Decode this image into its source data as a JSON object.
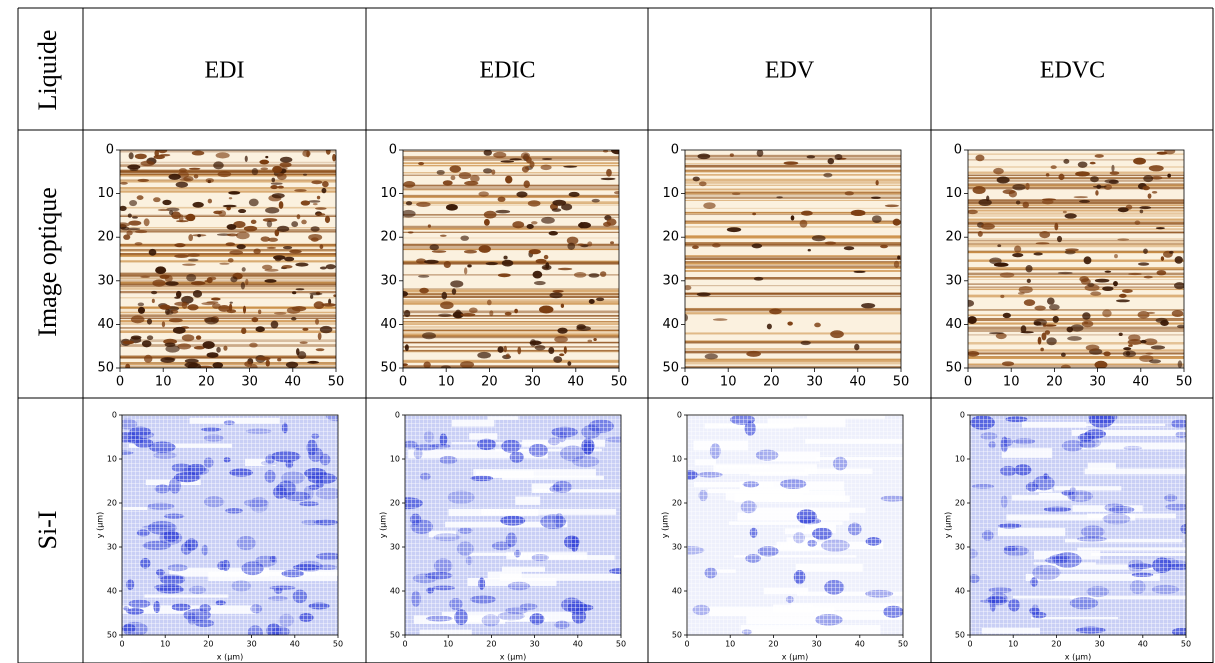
{
  "table": {
    "header": {
      "label": "Liquide",
      "columns": [
        "EDI",
        "EDIC",
        "EDV",
        "EDVC"
      ]
    },
    "rows": [
      {
        "label": "Image optique",
        "xticks": [
          0,
          10,
          20,
          30,
          40,
          50
        ],
        "yticks": [
          0,
          10,
          20,
          30,
          40,
          50
        ]
      },
      {
        "label": "Si-I",
        "xlabel": "x (µm)",
        "ylabel": "y (µm)",
        "xticks": [
          0,
          10,
          20,
          30,
          40,
          50
        ],
        "yticks": [
          0,
          10,
          20,
          30,
          40,
          50
        ]
      }
    ]
  }
}
